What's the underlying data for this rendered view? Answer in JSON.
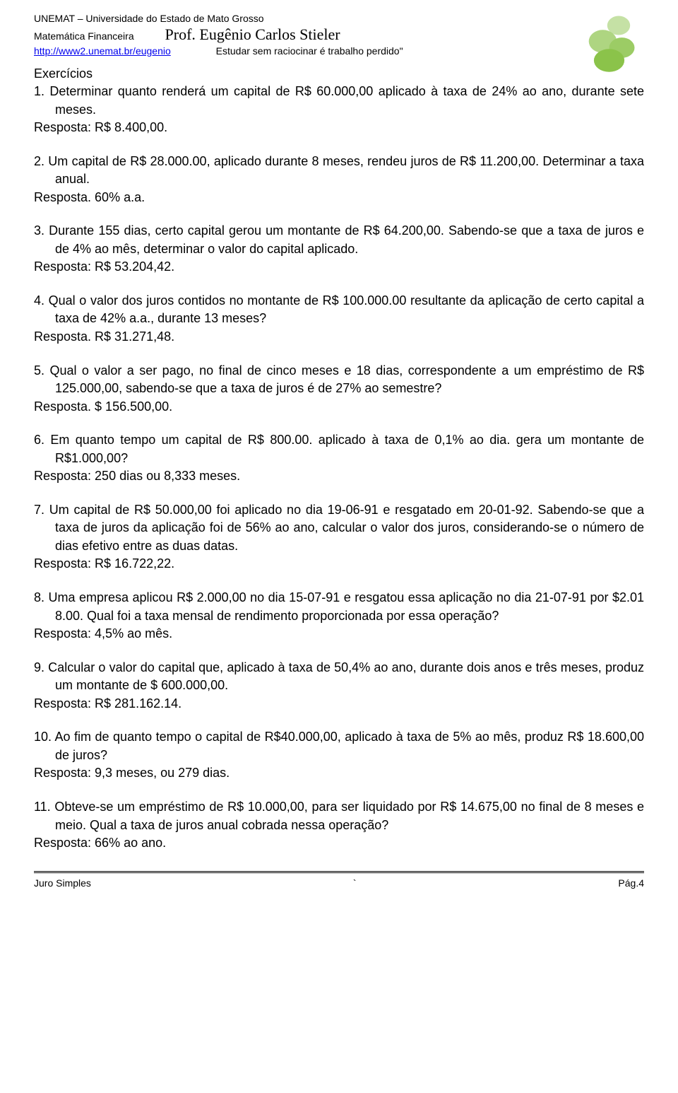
{
  "header": {
    "university": "UNEMAT – Universidade do Estado de Mato Grosso",
    "subject": "Matemática Financeira",
    "professor": "Prof. Eugênio Carlos Stieler",
    "url": "http://www2.unemat.br/eugenio",
    "motto": "Estudar sem raciocinar é trabalho perdido\""
  },
  "section_title": "Exercícios",
  "exercises": [
    {
      "text": "1. Determinar quanto renderá um capital de R$ 60.000,00 aplicado à taxa de 24% ao ano, durante sete meses.",
      "answer": "Resposta: R$ 8.400,00."
    },
    {
      "text": "2. Um capital de R$ 28.000.00, aplicado durante 8 meses, rendeu juros de R$ 11.200,00. Determinar a taxa anual.",
      "answer": "Resposta. 60% a.a."
    },
    {
      "text": "3. Durante 155 dias, certo capital gerou um montante de R$ 64.200,00. Sabendo-se que a taxa de juros e de 4% ao mês, determinar o valor do capital aplicado.",
      "answer": "Resposta: R$ 53.204,42."
    },
    {
      "text": "4. Qual o valor dos juros contidos no montante de R$ 100.000.00 resultante da aplicação de certo capital a taxa de 42% a.a., durante 13 meses?",
      "answer": "Resposta. R$ 31.271,48."
    },
    {
      "text": "5. Qual o valor a ser pago, no final de cinco meses e 18 dias, correspondente a um empréstimo de R$ 125.000,00, sabendo-se que a taxa de juros é de 27% ao semestre?",
      "answer": "Resposta. $ 156.500,00."
    },
    {
      "text": "6. Em quanto tempo um capital de R$ 800.00. aplicado à taxa de 0,1% ao dia. gera um montante de R$1.000,00?",
      "answer": "Resposta: 250 dias ou 8,333 meses."
    },
    {
      "text": "7. Um capital de R$ 50.000,00 foi aplicado no dia 19-06-91 e resgatado em 20-01-92. Sabendo-se que a taxa de juros da aplicação foi de 56% ao ano, calcular o valor dos juros, considerando-se o número de dias efetivo entre as duas datas.",
      "answer": "Resposta: R$ 16.722,22."
    },
    {
      "text": "8. Uma empresa aplicou R$ 2.000,00 no dia 15-07-91 e resgatou essa aplicação no dia 21-07-91 por $2.01 8.00. Qual foi a taxa mensal de rendimento proporcionada por essa operação?",
      "answer": "Resposta: 4,5% ao mês."
    },
    {
      "text": "9. Calcular o valor do capital que, aplicado à taxa de 50,4% ao ano, durante dois anos e três meses, produz um montante de $ 600.000,00.",
      "answer": "Resposta: R$ 281.162.14."
    },
    {
      "text": "10. Ao fim de quanto tempo o capital de R$40.000,00, aplicado à taxa de 5% ao mês, produz R$ 18.600,00 de juros?",
      "answer": "Resposta: 9,3 meses, ou 279 dias."
    },
    {
      "text": "11. Obteve-se um empréstimo de R$ 10.000,00, para ser liquidado por R$ 14.675,00 no final de 8 meses e meio. Qual a taxa de juros anual cobrada nessa operação?",
      "answer": "Resposta: 66% ao ano."
    }
  ],
  "footer": {
    "left": "Juro Simples",
    "center": "`",
    "right": "Pág.4"
  },
  "colors": {
    "text": "#000000",
    "background": "#ffffff",
    "link": "#0000ee",
    "logo_green": "#8bc34a",
    "logo_dark": "#6b8e23"
  }
}
